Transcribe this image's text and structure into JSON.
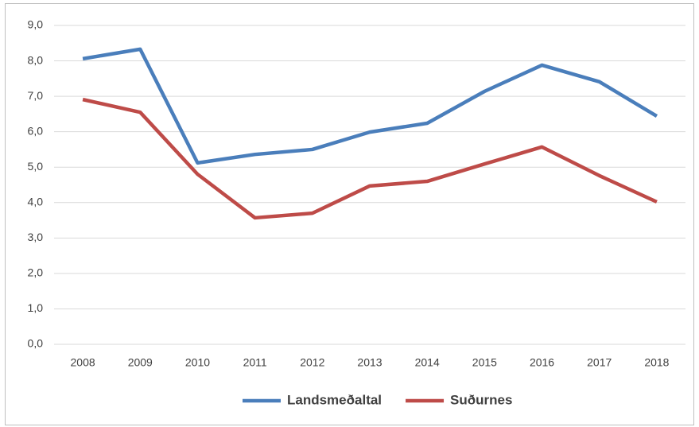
{
  "chart_data": {
    "type": "line",
    "categories": [
      "2008",
      "2009",
      "2010",
      "2011",
      "2012",
      "2013",
      "2014",
      "2015",
      "2016",
      "2017",
      "2018"
    ],
    "series": [
      {
        "name": "Landsmeðaltal",
        "color": "#4a7ebb",
        "values": [
          8.06,
          8.33,
          5.12,
          5.36,
          5.5,
          5.99,
          6.24,
          7.14,
          7.88,
          7.41,
          6.44
        ]
      },
      {
        "name": "Suðurnes",
        "color": "#be4b48",
        "values": [
          6.91,
          6.55,
          4.8,
          3.57,
          3.7,
          4.47,
          4.6,
          5.09,
          5.57,
          4.76,
          4.02
        ]
      }
    ],
    "ylim": [
      0,
      9
    ],
    "yticks": [
      {
        "value": 0,
        "label": "0,0"
      },
      {
        "value": 1,
        "label": "1,0"
      },
      {
        "value": 2,
        "label": "2,0"
      },
      {
        "value": 3,
        "label": "3,0"
      },
      {
        "value": 4,
        "label": "4,0"
      },
      {
        "value": 5,
        "label": "5,0"
      },
      {
        "value": 6,
        "label": "6,0"
      },
      {
        "value": 7,
        "label": "7,0"
      },
      {
        "value": 8,
        "label": "8,0"
      },
      {
        "value": 9,
        "label": "9,0"
      }
    ],
    "grid": true,
    "legend": "bottom"
  }
}
